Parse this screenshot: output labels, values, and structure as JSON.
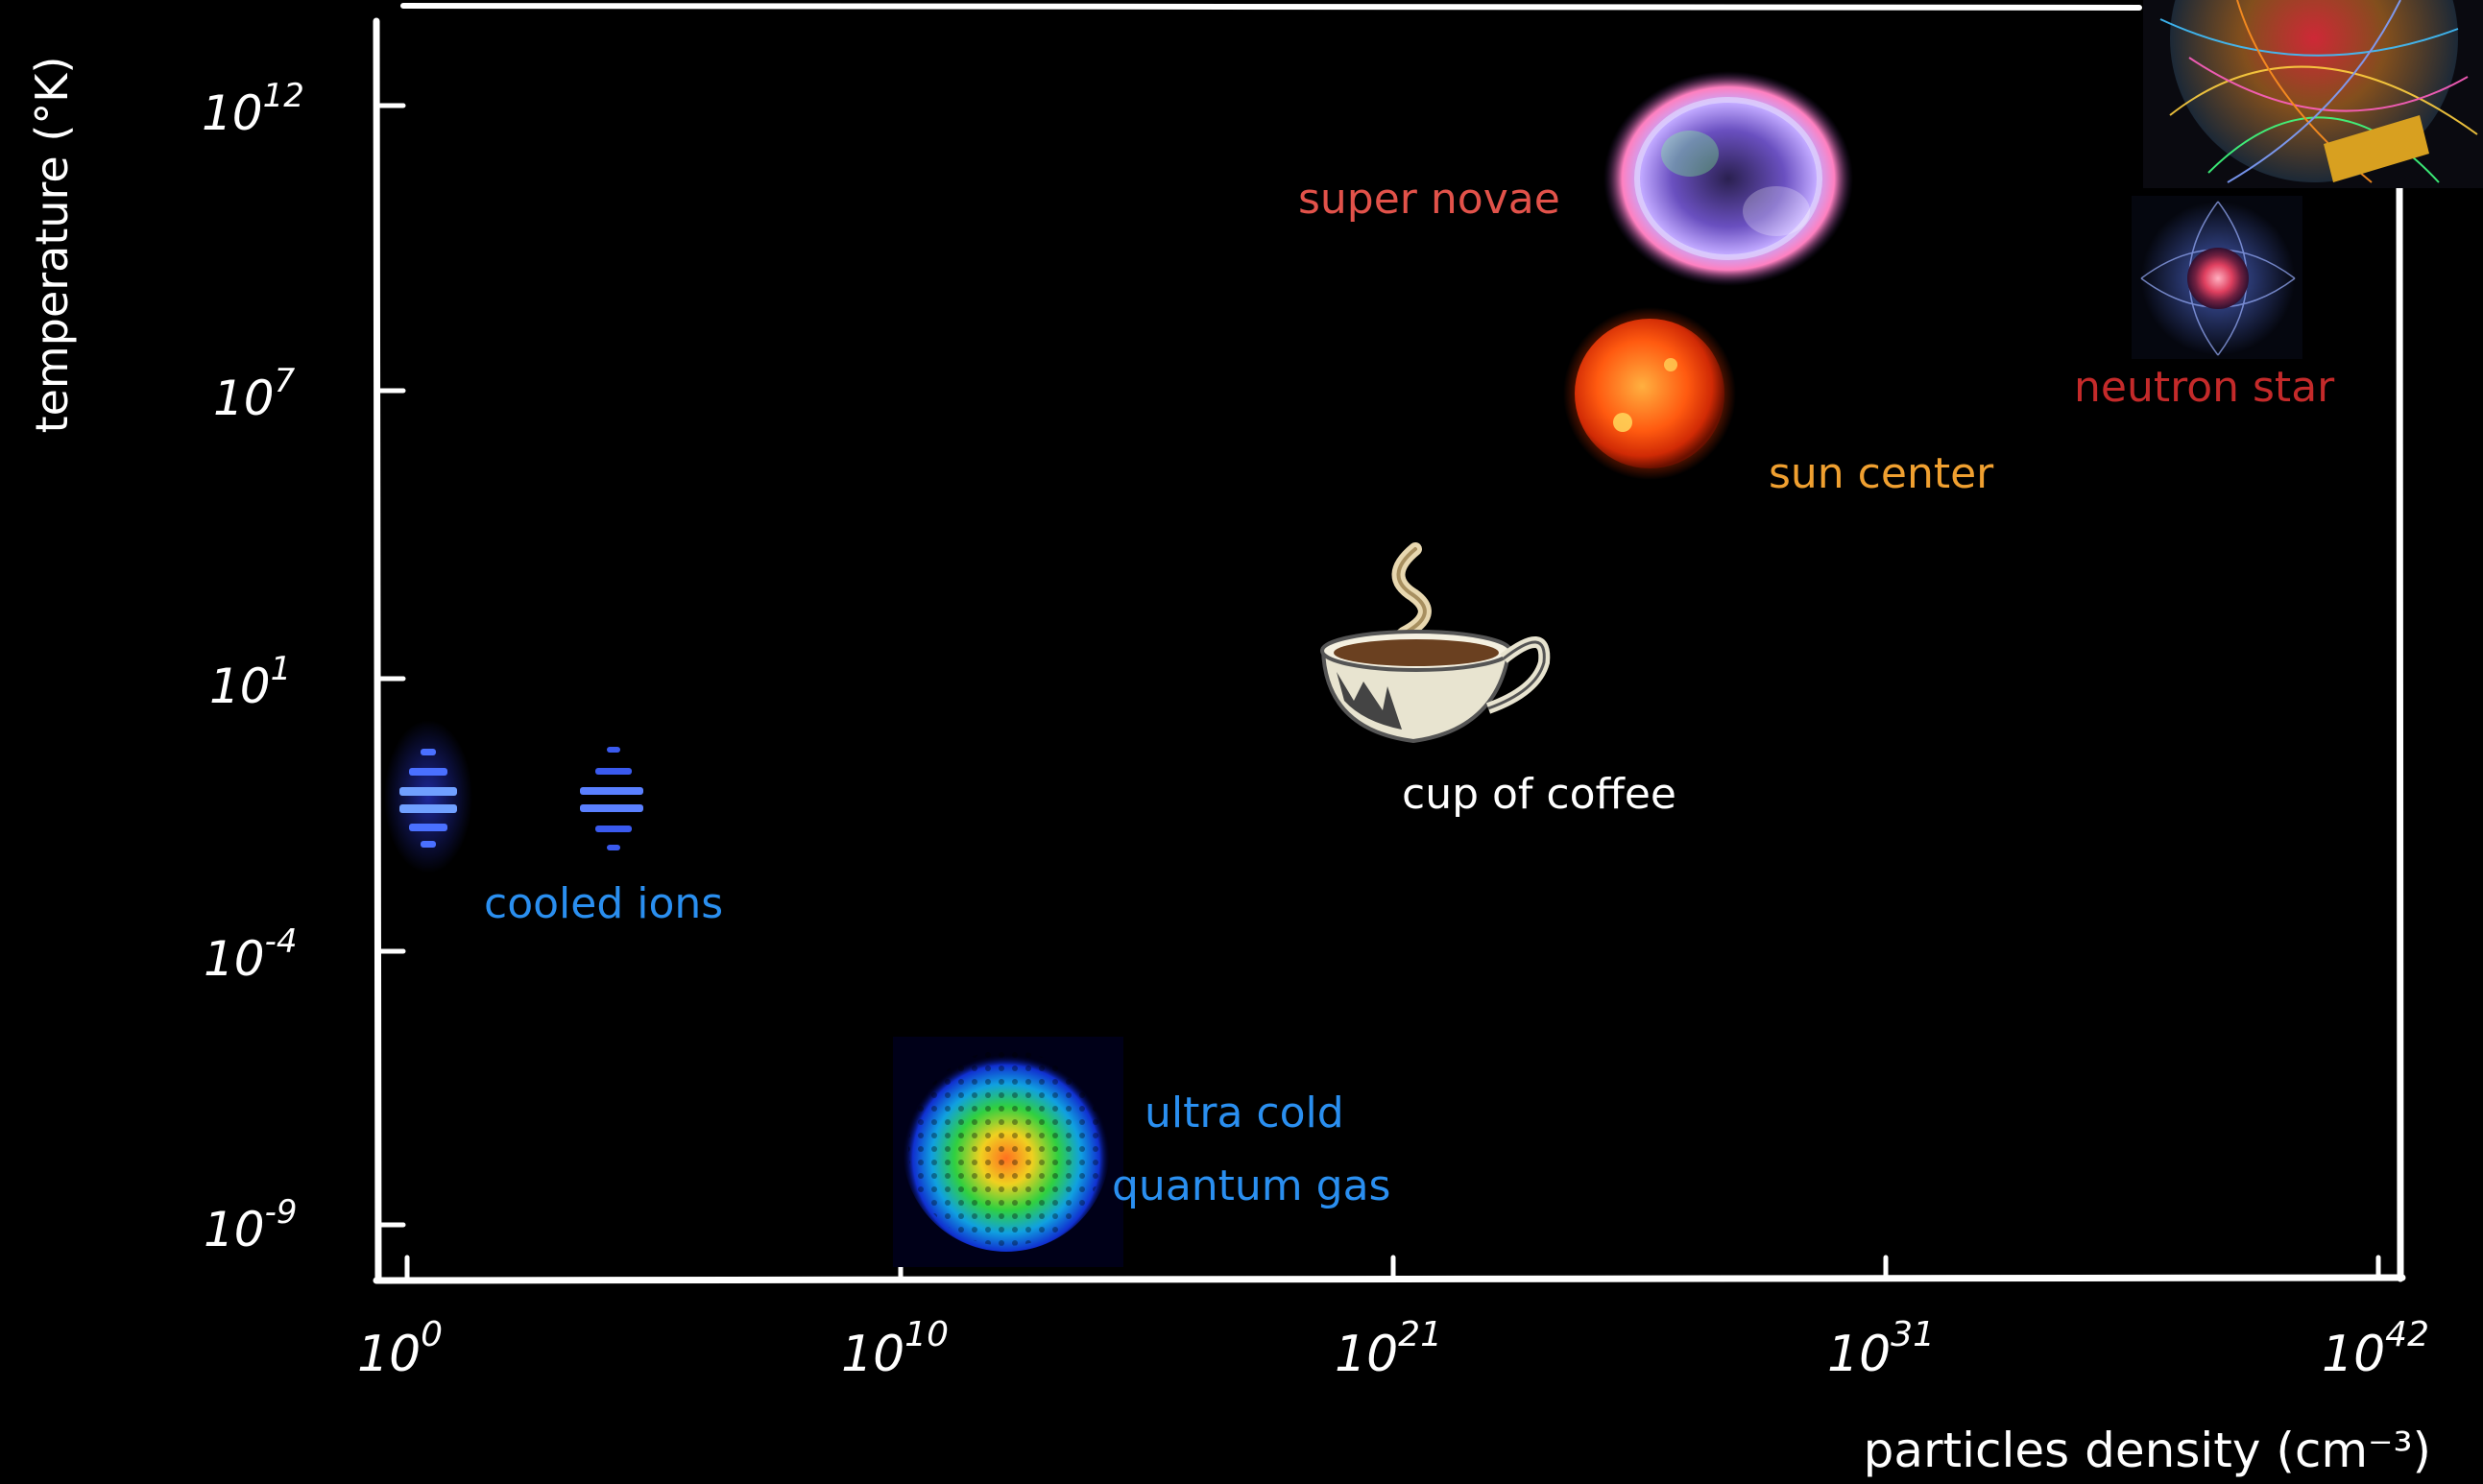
{
  "axes": {
    "ylabel": "temperature (°K)",
    "xlabel": "particles density (cm⁻³)",
    "y_ticks": [
      {
        "base": "10",
        "exp": "12"
      },
      {
        "base": "10",
        "exp": "7"
      },
      {
        "base": "10",
        "exp": "1"
      },
      {
        "base": "10",
        "exp": "-4"
      },
      {
        "base": "10",
        "exp": "-9"
      }
    ],
    "x_ticks": [
      {
        "base": "10",
        "exp": "0"
      },
      {
        "base": "10",
        "exp": "10"
      },
      {
        "base": "10",
        "exp": "21"
      },
      {
        "base": "10",
        "exp": "31"
      },
      {
        "base": "10",
        "exp": "42"
      }
    ]
  },
  "items": {
    "super_novae": "super novae",
    "neutron_star": "neutron star",
    "sun_center": "sun center",
    "cup_of_coffee": "cup of coffee",
    "cooled_ions": "cooled ions",
    "ultra_cold_1": "ultra cold",
    "ultra_cold_2": "quantum gas"
  },
  "colors": {
    "background": "#000000",
    "frame": "#ffffff",
    "super_novae": "#e2524a",
    "neutron_star": "#c42a2a",
    "sun_center": "#f0a030",
    "cup_of_coffee": "#ffffff",
    "cooled_ions": "#2a8ff0",
    "ultra_cold": "#2a8ff0"
  },
  "icons": [
    "supernova-image",
    "neutron-star-image",
    "sun-image",
    "coffee-cup-icon",
    "cooled-ions-image",
    "quantum-gas-image",
    "particle-collision-image"
  ]
}
